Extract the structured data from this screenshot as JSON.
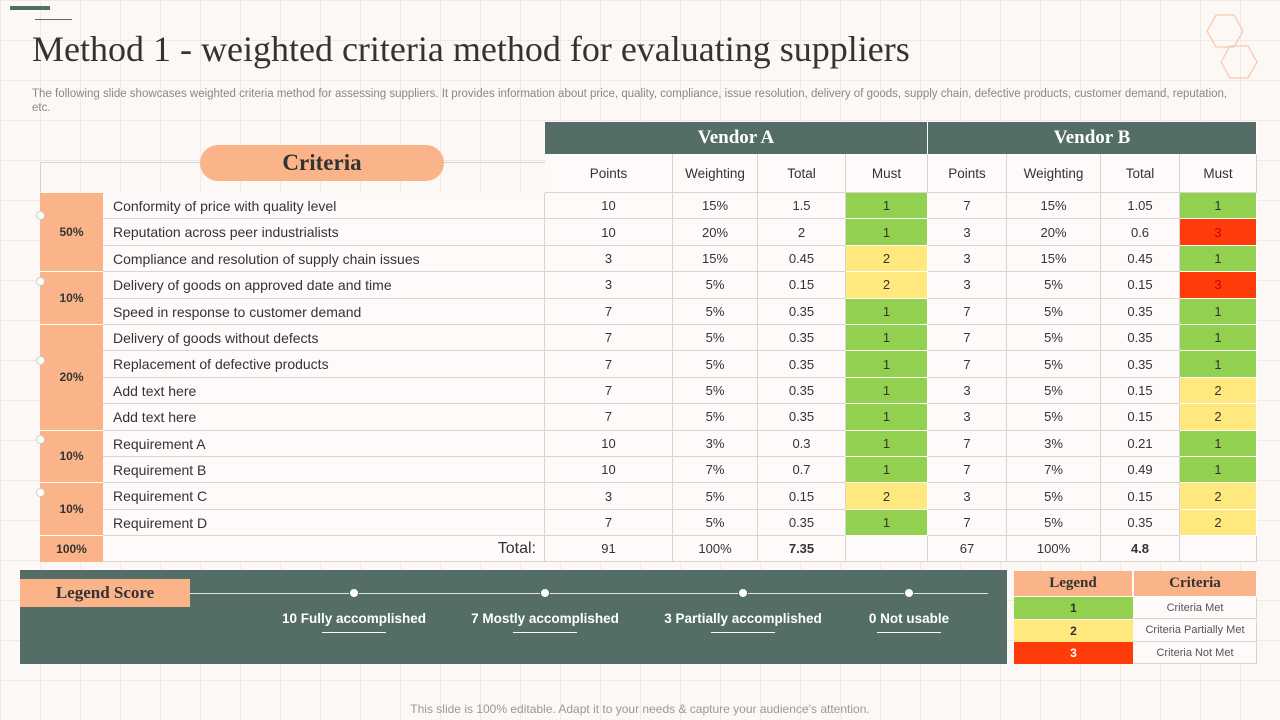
{
  "title": "Method 1 - weighted criteria method for evaluating suppliers",
  "subtitle": "The following slide showcases weighted criteria method for assessing suppliers. It provides information about price, quality, compliance, issue resolution, delivery of goods, supply chain, defective products, customer demand, reputation, etc.",
  "criteria_label": "Criteria",
  "vendors": [
    "Vendor A",
    "Vendor B"
  ],
  "columns": [
    "Points",
    "Weighting",
    "Total",
    "Must"
  ],
  "groups": [
    {
      "weight": "50%",
      "rows": [
        {
          "name": "Conformity of price with quality level",
          "a": [
            "10",
            "15%",
            "1.5",
            "1"
          ],
          "b": [
            "7",
            "15%",
            "1.05",
            "1"
          ]
        },
        {
          "name": "Reputation across peer industrialists",
          "a": [
            "10",
            "20%",
            "2",
            "1"
          ],
          "b": [
            "3",
            "20%",
            "0.6",
            "3"
          ]
        },
        {
          "name": "Compliance and resolution of supply chain issues",
          "a": [
            "3",
            "15%",
            "0.45",
            "2"
          ],
          "b": [
            "3",
            "15%",
            "0.45",
            "1"
          ]
        }
      ]
    },
    {
      "weight": "10%",
      "rows": [
        {
          "name": "Delivery of goods on approved date and time",
          "a": [
            "3",
            "5%",
            "0.15",
            "2"
          ],
          "b": [
            "3",
            "5%",
            "0.15",
            "3"
          ]
        },
        {
          "name": "Speed in response to customer demand",
          "a": [
            "7",
            "5%",
            "0.35",
            "1"
          ],
          "b": [
            "7",
            "5%",
            "0.35",
            "1"
          ]
        }
      ]
    },
    {
      "weight": "20%",
      "rows": [
        {
          "name": "Delivery of goods without defects",
          "a": [
            "7",
            "5%",
            "0.35",
            "1"
          ],
          "b": [
            "7",
            "5%",
            "0.35",
            "1"
          ]
        },
        {
          "name": "Replacement of defective products",
          "a": [
            "7",
            "5%",
            "0.35",
            "1"
          ],
          "b": [
            "7",
            "5%",
            "0.35",
            "1"
          ]
        },
        {
          "name": "Add text here",
          "a": [
            "7",
            "5%",
            "0.35",
            "1"
          ],
          "b": [
            "3",
            "5%",
            "0.15",
            "2"
          ]
        },
        {
          "name": "Add text here",
          "a": [
            "7",
            "5%",
            "0.35",
            "1"
          ],
          "b": [
            "3",
            "5%",
            "0.15",
            "2"
          ]
        }
      ]
    },
    {
      "weight": "10%",
      "rows": [
        {
          "name": "Requirement A",
          "a": [
            "10",
            "3%",
            "0.3",
            "1"
          ],
          "b": [
            "7",
            "3%",
            "0.21",
            "1"
          ]
        },
        {
          "name": "Requirement B",
          "a": [
            "10",
            "7%",
            "0.7",
            "1"
          ],
          "b": [
            "7",
            "7%",
            "0.49",
            "1"
          ]
        }
      ]
    },
    {
      "weight": "10%",
      "rows": [
        {
          "name": "Requirement C",
          "a": [
            "3",
            "5%",
            "0.15",
            "2"
          ],
          "b": [
            "3",
            "5%",
            "0.15",
            "2"
          ]
        },
        {
          "name": "Requirement D",
          "a": [
            "7",
            "5%",
            "0.35",
            "1"
          ],
          "b": [
            "7",
            "5%",
            "0.35",
            "2"
          ]
        }
      ]
    }
  ],
  "total": {
    "weight": "100%",
    "label": "Total:",
    "a": [
      "91",
      "100%",
      "7.35"
    ],
    "b": [
      "67",
      "100%",
      "4.8"
    ]
  },
  "legend_score": {
    "title": "Legend Score",
    "items": [
      "10 Fully accomplished",
      "7 Mostly accomplished",
      "3 Partially accomplished",
      "0 Not usable"
    ]
  },
  "legend": {
    "headers": [
      "Legend",
      "Criteria"
    ],
    "rows": [
      {
        "code": "1",
        "text": "Criteria Met",
        "color": "#92d050"
      },
      {
        "code": "2",
        "text": "Criteria Partially Met",
        "color": "#ffe97f"
      },
      {
        "code": "3",
        "text": "Criteria Not Met",
        "color": "#ff3b0a"
      }
    ]
  },
  "footer": "This slide is 100% editable. Adapt it to your needs & capture your audience’s attention."
}
